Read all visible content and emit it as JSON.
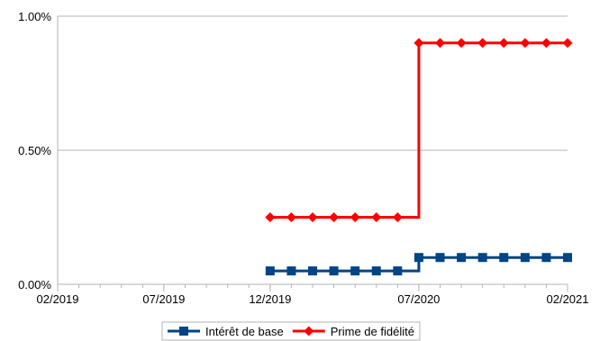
{
  "chart_data": {
    "type": "line",
    "step": true,
    "x": [
      "2019-12",
      "2020-01",
      "2020-02",
      "2020-03",
      "2020-04",
      "2020-05",
      "2020-06",
      "2020-07",
      "2020-08",
      "2020-09",
      "2020-10",
      "2020-11",
      "2020-12",
      "2021-01",
      "2021-02"
    ],
    "xlim": [
      "2019-02",
      "2021-02"
    ],
    "x_ticks": [
      "02/2019",
      "07/2019",
      "12/2019",
      "07/2020",
      "02/2021"
    ],
    "ylim": [
      0,
      1.0
    ],
    "y_ticks": [
      "0.00%",
      "0.50%",
      "1.00%"
    ],
    "y_tick_values": [
      0,
      0.5,
      1.0
    ],
    "grid": "horizontal",
    "legend_position": "bottom",
    "series": [
      {
        "name": "Intérêt de base",
        "color": "#004586",
        "marker": "square",
        "values": [
          0.05,
          0.05,
          0.05,
          0.05,
          0.05,
          0.05,
          0.05,
          0.1,
          0.1,
          0.1,
          0.1,
          0.1,
          0.1,
          0.1,
          0.1
        ]
      },
      {
        "name": "Prime de fidélité",
        "color": "#ff0000",
        "marker": "diamond",
        "values": [
          0.25,
          0.25,
          0.25,
          0.25,
          0.25,
          0.25,
          0.25,
          0.9,
          0.9,
          0.9,
          0.9,
          0.9,
          0.9,
          0.9,
          0.9
        ]
      }
    ]
  }
}
